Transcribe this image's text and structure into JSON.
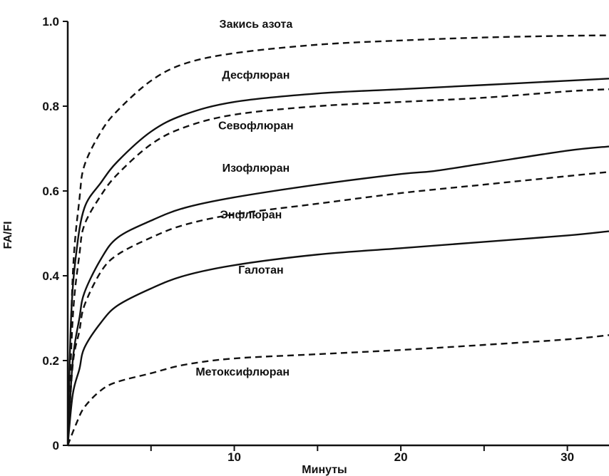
{
  "chart_data": {
    "type": "line",
    "title": "",
    "xlabel": "Минуты",
    "ylabel": "FA/FI",
    "xlim": [
      0,
      32.5
    ],
    "ylim": [
      0,
      1.0
    ],
    "x_ticks": [
      10,
      20,
      30
    ],
    "y_ticks": [
      0,
      0.2,
      0.4,
      0.6,
      0.8,
      1.0
    ],
    "y_tick_labels": [
      "0",
      "0.2",
      "0.4",
      "0.6",
      "0.8",
      "1.0"
    ],
    "grid": false,
    "legend": "inline labels",
    "series": [
      {
        "name": "Закись азота",
        "style": "dashed",
        "x": [
          0,
          0.3,
          0.7,
          1,
          2,
          3,
          5,
          7,
          10,
          15,
          20,
          25,
          30,
          32.5
        ],
        "y": [
          0,
          0.4,
          0.58,
          0.66,
          0.74,
          0.79,
          0.86,
          0.9,
          0.925,
          0.945,
          0.955,
          0.962,
          0.966,
          0.967
        ]
      },
      {
        "name": "Десфлюран",
        "style": "solid",
        "x": [
          0,
          0.2,
          0.5,
          1,
          2,
          3,
          5,
          7,
          10,
          15,
          20,
          25,
          30,
          32.5
        ],
        "y": [
          0,
          0.3,
          0.45,
          0.56,
          0.62,
          0.67,
          0.74,
          0.78,
          0.81,
          0.83,
          0.84,
          0.85,
          0.86,
          0.865
        ]
      },
      {
        "name": "Севофлюран",
        "style": "dashed",
        "x": [
          0,
          0.3,
          0.7,
          1,
          2,
          3,
          5,
          7,
          10,
          15,
          20,
          25,
          30,
          32.5
        ],
        "y": [
          0,
          0.3,
          0.45,
          0.52,
          0.59,
          0.64,
          0.71,
          0.75,
          0.78,
          0.8,
          0.81,
          0.82,
          0.835,
          0.84
        ]
      },
      {
        "name": "Изофлюран",
        "style": "solid",
        "x": [
          0,
          0.3,
          0.7,
          1,
          2,
          3,
          5,
          7,
          10,
          15,
          20,
          22,
          25,
          30,
          32.5
        ],
        "y": [
          0,
          0.2,
          0.3,
          0.36,
          0.44,
          0.49,
          0.53,
          0.56,
          0.585,
          0.615,
          0.64,
          0.647,
          0.665,
          0.695,
          0.705
        ]
      },
      {
        "name": "Энфлюран",
        "style": "dashed",
        "x": [
          0,
          0.3,
          0.7,
          1,
          2,
          3,
          5,
          7,
          10,
          15,
          20,
          25,
          30,
          32.5
        ],
        "y": [
          0,
          0.19,
          0.27,
          0.33,
          0.41,
          0.45,
          0.49,
          0.52,
          0.545,
          0.57,
          0.595,
          0.615,
          0.635,
          0.645
        ]
      },
      {
        "name": "Галотан",
        "style": "solid",
        "x": [
          0,
          0.3,
          0.7,
          1,
          2,
          3,
          5,
          7,
          10,
          15,
          20,
          25,
          30,
          32.5
        ],
        "y": [
          0,
          0.12,
          0.18,
          0.23,
          0.29,
          0.33,
          0.37,
          0.4,
          0.425,
          0.45,
          0.465,
          0.48,
          0.495,
          0.505
        ]
      },
      {
        "name": "Метоксифлюран",
        "style": "dashed",
        "x": [
          0,
          0.5,
          1,
          2,
          3,
          5,
          7,
          10,
          15,
          20,
          25,
          30,
          32.5
        ],
        "y": [
          0,
          0.05,
          0.09,
          0.13,
          0.15,
          0.17,
          0.19,
          0.205,
          0.215,
          0.225,
          0.237,
          0.25,
          0.26
        ]
      }
    ],
    "annotations": [
      {
        "text": "Закись азота",
        "x": 11.3,
        "y": 0.985
      },
      {
        "text": "Десфлюран",
        "x": 11.3,
        "y": 0.865
      },
      {
        "text": "Севофлюран",
        "x": 11.3,
        "y": 0.745
      },
      {
        "text": "Изофлюран",
        "x": 11.3,
        "y": 0.645
      },
      {
        "text": "Энфлюран",
        "x": 11.0,
        "y": 0.535
      },
      {
        "text": "Галотан",
        "x": 11.6,
        "y": 0.405
      },
      {
        "text": "Метоксифлюран",
        "x": 10.5,
        "y": 0.165
      }
    ]
  }
}
